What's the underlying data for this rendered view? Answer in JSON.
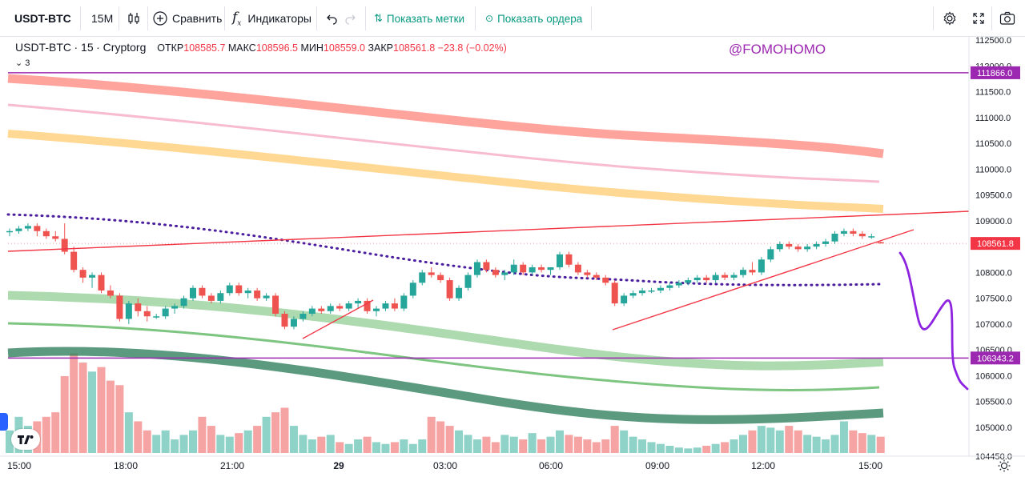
{
  "toolbar": {
    "symbol": "USDT-BTC",
    "interval": "15M",
    "compare_label": "Сравнить",
    "indicators_label": "Индикаторы",
    "show_marks_label": "Показать метки",
    "show_orders_label": "Показать ордера"
  },
  "legend": {
    "symbol": "USDT-BTC",
    "timeframe": "15",
    "exchange": "Cryptorg",
    "open_label": "ОТКР",
    "open": "108585.7",
    "high_label": "МАКС",
    "high": "108596.5",
    "low_label": "МИН",
    "low": "108559.0",
    "close_label": "ЗАКР",
    "close": "108561.8",
    "change": "−23.8 (−0.02%)",
    "indicator_count": "3"
  },
  "watermark": "@FOMOHOMO",
  "price_labels": [
    "112500.0",
    "112000.0",
    "111500.0",
    "111000.0",
    "110500.0",
    "110000.0",
    "109500.0",
    "109000.0",
    "108000.0",
    "107500.0",
    "107000.0",
    "106500.0",
    "106000.0",
    "105500.0",
    "105000.0",
    "104450.0"
  ],
  "price_badges": {
    "level_top": "111866.0",
    "last_price": "108561.8",
    "level_bottom": "106343.2"
  },
  "time_labels": [
    "15:00",
    "18:00",
    "21:00",
    "29",
    "03:00",
    "06:00",
    "09:00",
    "12:00",
    "15:00"
  ],
  "colors": {
    "up": "#26a69a",
    "down": "#ef5350",
    "vol_up": "#8fd3c8",
    "vol_down": "#f5a3a3",
    "purple": "#9c27b0",
    "trend": "#f23645"
  },
  "chart_data": {
    "type": "candlestick",
    "symbol": "USDT-BTC",
    "interval": "15",
    "ylim": [
      104400,
      112700
    ],
    "hlines": [
      111866.0,
      106343.2
    ],
    "candles": [
      [
        108780,
        108850,
        108700,
        108800
      ],
      [
        108800,
        108900,
        108750,
        108850
      ],
      [
        108850,
        108950,
        108800,
        108900
      ],
      [
        108900,
        108950,
        108700,
        108800
      ],
      [
        108800,
        108850,
        108650,
        108700
      ],
      [
        108700,
        108800,
        108600,
        108650
      ],
      [
        108650,
        108950,
        108350,
        108400
      ],
      [
        108400,
        108500,
        108000,
        108050
      ],
      [
        108050,
        108100,
        107800,
        107900
      ],
      [
        107900,
        108000,
        107700,
        107950
      ],
      [
        107950,
        108000,
        107600,
        107650
      ],
      [
        107650,
        107750,
        107500,
        107550
      ],
      [
        107550,
        107600,
        107050,
        107100
      ],
      [
        107100,
        107450,
        107000,
        107400
      ],
      [
        107400,
        107500,
        107150,
        107250
      ],
      [
        107250,
        107350,
        107050,
        107150
      ],
      [
        107150,
        107200,
        107100,
        107150
      ],
      [
        107150,
        107350,
        107100,
        107300
      ],
      [
        107300,
        107400,
        107200,
        107350
      ],
      [
        107350,
        107550,
        107300,
        107500
      ],
      [
        107500,
        107750,
        107450,
        107700
      ],
      [
        107700,
        107750,
        107500,
        107550
      ],
      [
        107550,
        107600,
        107400,
        107450
      ],
      [
        107450,
        107650,
        107400,
        107600
      ],
      [
        107600,
        107800,
        107550,
        107750
      ],
      [
        107750,
        107800,
        107550,
        107600
      ],
      [
        107600,
        107700,
        107500,
        107650
      ],
      [
        107650,
        107700,
        107450,
        107500
      ],
      [
        107500,
        107600,
        107450,
        107550
      ],
      [
        107550,
        107600,
        107150,
        107200
      ],
      [
        107200,
        107250,
        106900,
        106950
      ],
      [
        106950,
        107150,
        106900,
        107100
      ],
      [
        107100,
        107250,
        107050,
        107200
      ],
      [
        107200,
        107350,
        107150,
        107300
      ],
      [
        107300,
        107350,
        107200,
        107250
      ],
      [
        107250,
        107400,
        107200,
        107350
      ],
      [
        107350,
        107400,
        107250,
        107300
      ],
      [
        107300,
        107450,
        107250,
        107400
      ],
      [
        107400,
        107500,
        107300,
        107450
      ],
      [
        107450,
        107500,
        107200,
        107250
      ],
      [
        107250,
        107350,
        107150,
        107300
      ],
      [
        107300,
        107450,
        107250,
        107400
      ],
      [
        107400,
        107500,
        107250,
        107300
      ],
      [
        107300,
        107600,
        107250,
        107550
      ],
      [
        107550,
        107850,
        107500,
        107800
      ],
      [
        107800,
        108050,
        107750,
        108000
      ],
      [
        108000,
        108100,
        107900,
        107950
      ],
      [
        107950,
        108000,
        107800,
        107850
      ],
      [
        107850,
        107900,
        107450,
        107500
      ],
      [
        107500,
        107750,
        107450,
        107700
      ],
      [
        107700,
        108000,
        107650,
        107950
      ],
      [
        107950,
        108250,
        107900,
        108200
      ],
      [
        108200,
        108250,
        108000,
        108050
      ],
      [
        108050,
        108100,
        107900,
        107950
      ],
      [
        107950,
        108050,
        107850,
        108000
      ],
      [
        108000,
        108250,
        107950,
        108150
      ],
      [
        108150,
        108200,
        107950,
        108000
      ],
      [
        108000,
        108150,
        107950,
        108100
      ],
      [
        108100,
        108150,
        108000,
        108050
      ],
      [
        108050,
        108100,
        107950,
        108100
      ],
      [
        108100,
        108400,
        108050,
        108350
      ],
      [
        108350,
        108400,
        108100,
        108150
      ],
      [
        108150,
        108200,
        107950,
        108000
      ],
      [
        108000,
        108050,
        107900,
        107950
      ],
      [
        107950,
        108000,
        107850,
        107900
      ],
      [
        107900,
        107950,
        107750,
        107800
      ],
      [
        107800,
        107850,
        107350,
        107400
      ],
      [
        107400,
        107600,
        107350,
        107550
      ],
      [
        107550,
        107650,
        107500,
        107600
      ],
      [
        107600,
        107700,
        107550,
        107650
      ],
      [
        107650,
        107700,
        107600,
        107650
      ],
      [
        107650,
        107750,
        107600,
        107700
      ],
      [
        107700,
        107800,
        107650,
        107750
      ],
      [
        107750,
        107850,
        107700,
        107800
      ],
      [
        107800,
        107900,
        107750,
        107850
      ],
      [
        107850,
        107950,
        107800,
        107900
      ],
      [
        107900,
        107950,
        107800,
        107850
      ],
      [
        107850,
        108000,
        107800,
        107950
      ],
      [
        107950,
        108000,
        107850,
        107900
      ],
      [
        107900,
        108000,
        107850,
        107950
      ],
      [
        107950,
        108100,
        107900,
        108050
      ],
      [
        108050,
        108200,
        107950,
        108000
      ],
      [
        108000,
        108300,
        107950,
        108250
      ],
      [
        108250,
        108500,
        108200,
        108450
      ],
      [
        108450,
        108600,
        108400,
        108550
      ],
      [
        108550,
        108600,
        108450,
        108500
      ],
      [
        108500,
        108550,
        108400,
        108450
      ],
      [
        108450,
        108550,
        108400,
        108500
      ],
      [
        108500,
        108600,
        108450,
        108550
      ],
      [
        108550,
        108650,
        108500,
        108600
      ],
      [
        108600,
        108800,
        108550,
        108750
      ],
      [
        108750,
        108850,
        108700,
        108800
      ],
      [
        108800,
        108850,
        108700,
        108750
      ],
      [
        108750,
        108800,
        108650,
        108700
      ],
      [
        108700,
        108750,
        108650,
        108700
      ],
      [
        108585.7,
        108596.5,
        108559.0,
        108561.8
      ]
    ],
    "volume": [
      25,
      40,
      30,
      35,
      40,
      45,
      85,
      110,
      100,
      90,
      95,
      80,
      75,
      45,
      35,
      25,
      20,
      25,
      15,
      20,
      25,
      40,
      30,
      20,
      18,
      22,
      25,
      30,
      40,
      45,
      50,
      30,
      20,
      15,
      18,
      20,
      12,
      10,
      15,
      18,
      12,
      10,
      12,
      15,
      10,
      15,
      40,
      35,
      30,
      25,
      20,
      15,
      18,
      12,
      20,
      18,
      15,
      22,
      15,
      18,
      25,
      20,
      18,
      15,
      12,
      15,
      30,
      25,
      18,
      15,
      12,
      10,
      8,
      6,
      5,
      6,
      8,
      10,
      12,
      15,
      20,
      25,
      30,
      28,
      25,
      30,
      25,
      20,
      18,
      15,
      20,
      35,
      25,
      22,
      20,
      18
    ]
  }
}
